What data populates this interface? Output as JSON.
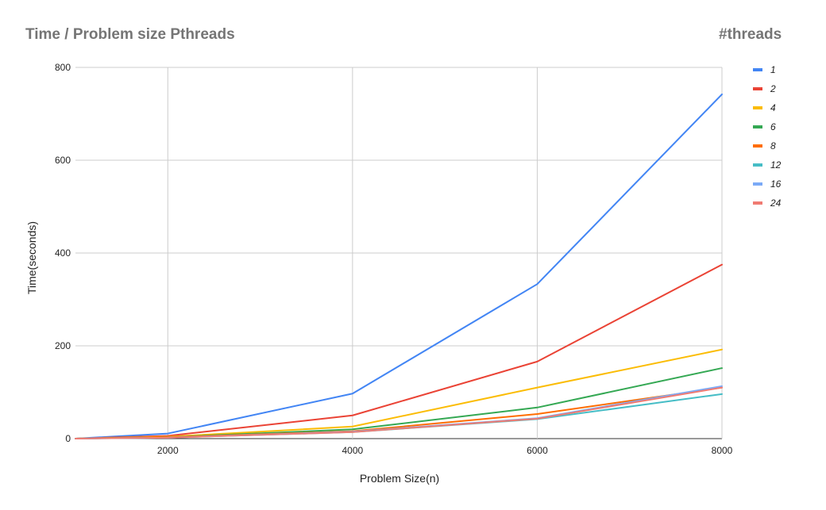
{
  "chart_data": {
    "type": "line",
    "title": "Time / Problem size Pthreads",
    "legend_title": "#threads",
    "xlabel": "Problem Size(n)",
    "ylabel": "Time(seconds)",
    "x": [
      1000,
      2000,
      4000,
      6000,
      8000
    ],
    "xticks": [
      2000,
      4000,
      6000,
      8000
    ],
    "yticks": [
      0,
      200,
      400,
      600,
      800
    ],
    "xlim": [
      1000,
      8000
    ],
    "ylim": [
      0,
      800
    ],
    "grid": true,
    "legend_position": "right",
    "series": [
      {
        "name": "1",
        "color": "#4285f4",
        "values": [
          0,
          11,
          97,
          333,
          742
        ]
      },
      {
        "name": "2",
        "color": "#ea4335",
        "values": [
          0,
          6,
          50,
          166,
          375
        ]
      },
      {
        "name": "4",
        "color": "#fbbc04",
        "values": [
          0,
          4,
          26,
          110,
          192
        ]
      },
      {
        "name": "6",
        "color": "#34a853",
        "values": [
          0,
          3,
          20,
          67,
          152
        ]
      },
      {
        "name": "8",
        "color": "#ff6d01",
        "values": [
          0,
          3,
          16,
          53,
          110
        ]
      },
      {
        "name": "12",
        "color": "#46bdc6",
        "values": [
          0,
          2,
          14,
          42,
          96
        ]
      },
      {
        "name": "16",
        "color": "#7baaf7",
        "values": [
          0,
          2,
          15,
          44,
          113
        ]
      },
      {
        "name": "24",
        "color": "#f07b72",
        "values": [
          0,
          2,
          14,
          43,
          110
        ]
      }
    ]
  }
}
